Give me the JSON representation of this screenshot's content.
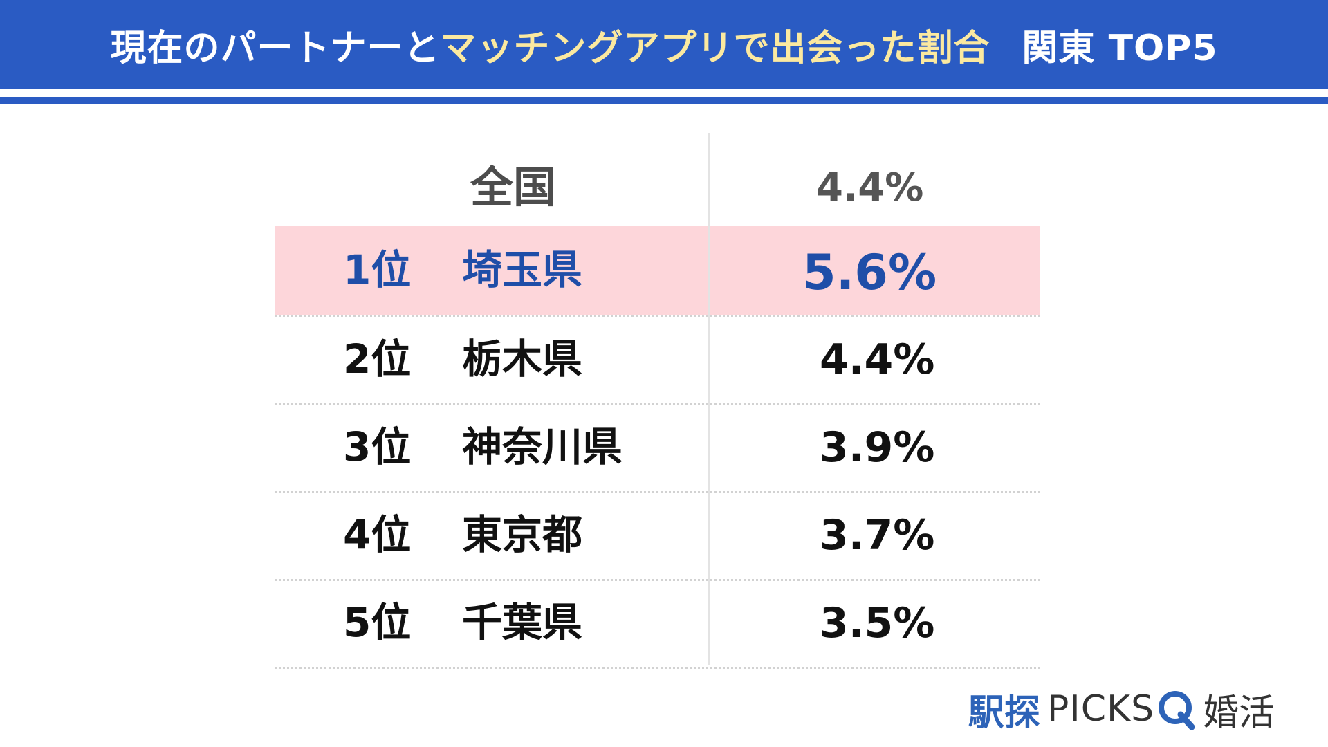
{
  "header": {
    "title_part1": "現在のパートナーと",
    "title_highlight": "マッチングアプリで出会った割合",
    "title_part2": "関東 TOP5"
  },
  "chart_data": {
    "type": "table",
    "national": {
      "label": "全国",
      "value": "4.4%"
    },
    "rows": [
      {
        "rank": "1位",
        "prefecture": "埼玉県",
        "value": "5.6%",
        "highlight": true
      },
      {
        "rank": "2位",
        "prefecture": "栃木県",
        "value": "4.4%",
        "highlight": false
      },
      {
        "rank": "3位",
        "prefecture": "神奈川県",
        "value": "3.9%",
        "highlight": false
      },
      {
        "rank": "4位",
        "prefecture": "東京都",
        "value": "3.7%",
        "highlight": false
      },
      {
        "rank": "5位",
        "prefecture": "千葉県",
        "value": "3.5%",
        "highlight": false
      }
    ]
  },
  "logo": {
    "part1": "駅探",
    "part2": "PICKS",
    "icon": "magnifier-q-icon",
    "part3": "婚活"
  },
  "colors": {
    "brand_blue": "#2a5bc3",
    "highlight_text": "#fbe9a0",
    "rank1_band": "#fdd6da",
    "rank1_text": "#1f4ea8"
  }
}
